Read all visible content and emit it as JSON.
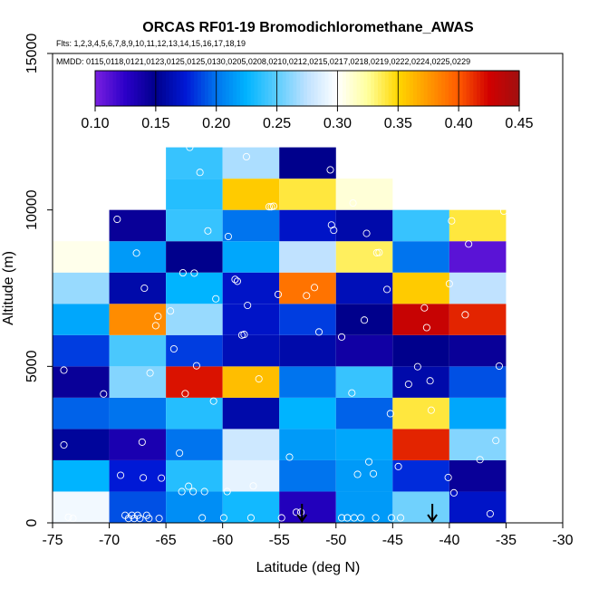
{
  "chart_data": {
    "type": "heatmap",
    "title": "ORCAS RF01-19 Bromodichloromethane_AWAS",
    "flights_label": "Flts: 1,2,3,4,5,6,7,8,9,10,11,12,13,14,15,16,17,18,19",
    "dates_label": "MMDD: 0115,0118,0121,0123,0125,0125,0130,0205,0208,0210,0212,0215,0217,0218,0219,0222,0224,0225,0229",
    "xlabel": "Latitude (deg N)",
    "ylabel": "Altitude (m)",
    "xlim": [
      -75,
      -30
    ],
    "ylim": [
      0,
      15000
    ],
    "x_ticks": [
      -75,
      -70,
      -65,
      -60,
      -55,
      -50,
      -45,
      -40,
      -35,
      -30
    ],
    "y_ticks": [
      0,
      5000,
      10000,
      15000
    ],
    "colorbar": {
      "min": 0.1,
      "max": 0.45,
      "ticks": [
        0.1,
        0.15,
        0.2,
        0.25,
        0.3,
        0.35,
        0.4,
        0.45
      ],
      "tick_labels": [
        "0.10",
        "0.15",
        "0.20",
        "0.25",
        "0.30",
        "0.35",
        "0.40",
        "0.45"
      ],
      "colors": [
        "#7a1fe0",
        "#2b00c8",
        "#00008c",
        "#0019d6",
        "#0074ee",
        "#00b4ff",
        "#5ccdfd",
        "#c0e2ff",
        "#ffffff",
        "#ffff9c",
        "#ffd700",
        "#ff9900",
        "#ff5a00",
        "#d10000",
        "#a01010"
      ]
    },
    "cell_width_deg": 5,
    "cell_height_m": 1000,
    "cells": [
      {
        "lat": -75,
        "alt": 0,
        "value": 0.295
      },
      {
        "lat": -75,
        "alt": 1000,
        "value": 0.225
      },
      {
        "lat": -75,
        "alt": 2000,
        "value": 0.155
      },
      {
        "lat": -75,
        "alt": 3000,
        "value": 0.195
      },
      {
        "lat": -75,
        "alt": 4000,
        "value": 0.145
      },
      {
        "lat": -75,
        "alt": 5000,
        "value": 0.185
      },
      {
        "lat": -75,
        "alt": 6000,
        "value": 0.22
      },
      {
        "lat": -75,
        "alt": 7000,
        "value": 0.265
      },
      {
        "lat": -75,
        "alt": 8000,
        "value": 0.305
      },
      {
        "lat": -70,
        "alt": 0,
        "value": 0.19
      },
      {
        "lat": -70,
        "alt": 1000,
        "value": 0.175
      },
      {
        "lat": -70,
        "alt": 2000,
        "value": 0.135
      },
      {
        "lat": -70,
        "alt": 3000,
        "value": 0.2
      },
      {
        "lat": -70,
        "alt": 4000,
        "value": 0.26
      },
      {
        "lat": -70,
        "alt": 5000,
        "value": 0.245
      },
      {
        "lat": -70,
        "alt": 6000,
        "value": 0.38
      },
      {
        "lat": -70,
        "alt": 7000,
        "value": 0.16
      },
      {
        "lat": -70,
        "alt": 8000,
        "value": 0.215
      },
      {
        "lat": -70,
        "alt": 9000,
        "value": 0.145
      },
      {
        "lat": -65,
        "alt": 0,
        "value": 0.21
      },
      {
        "lat": -65,
        "alt": 1000,
        "value": 0.235
      },
      {
        "lat": -65,
        "alt": 2000,
        "value": 0.2
      },
      {
        "lat": -65,
        "alt": 3000,
        "value": 0.235
      },
      {
        "lat": -65,
        "alt": 4000,
        "value": 0.42
      },
      {
        "lat": -65,
        "alt": 5000,
        "value": 0.185
      },
      {
        "lat": -65,
        "alt": 6000,
        "value": 0.265
      },
      {
        "lat": -65,
        "alt": 7000,
        "value": 0.225
      },
      {
        "lat": -65,
        "alt": 8000,
        "value": 0.15
      },
      {
        "lat": -65,
        "alt": 9000,
        "value": 0.24
      },
      {
        "lat": -65,
        "alt": 10000,
        "value": 0.235
      },
      {
        "lat": -65,
        "alt": 11000,
        "value": 0.24
      },
      {
        "lat": -60,
        "alt": 0,
        "value": 0.23
      },
      {
        "lat": -60,
        "alt": 1000,
        "value": 0.29
      },
      {
        "lat": -60,
        "alt": 2000,
        "value": 0.28
      },
      {
        "lat": -60,
        "alt": 3000,
        "value": 0.16
      },
      {
        "lat": -60,
        "alt": 4000,
        "value": 0.36
      },
      {
        "lat": -60,
        "alt": 5000,
        "value": 0.165
      },
      {
        "lat": -60,
        "alt": 6000,
        "value": 0.17
      },
      {
        "lat": -60,
        "alt": 7000,
        "value": 0.17
      },
      {
        "lat": -60,
        "alt": 8000,
        "value": 0.22
      },
      {
        "lat": -60,
        "alt": 9000,
        "value": 0.2
      },
      {
        "lat": -60,
        "alt": 10000,
        "value": 0.355
      },
      {
        "lat": -60,
        "alt": 11000,
        "value": 0.27
      },
      {
        "lat": -55,
        "alt": 0,
        "value": 0.13
      },
      {
        "lat": -55,
        "alt": 1000,
        "value": 0.2
      },
      {
        "lat": -55,
        "alt": 2000,
        "value": 0.215
      },
      {
        "lat": -55,
        "alt": 3000,
        "value": 0.225
      },
      {
        "lat": -55,
        "alt": 4000,
        "value": 0.2
      },
      {
        "lat": -55,
        "alt": 5000,
        "value": 0.16
      },
      {
        "lat": -55,
        "alt": 6000,
        "value": 0.185
      },
      {
        "lat": -55,
        "alt": 7000,
        "value": 0.39
      },
      {
        "lat": -55,
        "alt": 8000,
        "value": 0.275
      },
      {
        "lat": -55,
        "alt": 9000,
        "value": 0.17
      },
      {
        "lat": -55,
        "alt": 10000,
        "value": 0.34
      },
      {
        "lat": -55,
        "alt": 11000,
        "value": 0.15
      },
      {
        "lat": -50,
        "alt": 0,
        "value": 0.215
      },
      {
        "lat": -50,
        "alt": 1000,
        "value": 0.215
      },
      {
        "lat": -50,
        "alt": 2000,
        "value": 0.22
      },
      {
        "lat": -50,
        "alt": 3000,
        "value": 0.195
      },
      {
        "lat": -50,
        "alt": 4000,
        "value": 0.24
      },
      {
        "lat": -50,
        "alt": 5000,
        "value": 0.14
      },
      {
        "lat": -50,
        "alt": 6000,
        "value": 0.15
      },
      {
        "lat": -50,
        "alt": 7000,
        "value": 0.165
      },
      {
        "lat": -50,
        "alt": 8000,
        "value": 0.335
      },
      {
        "lat": -50,
        "alt": 9000,
        "value": 0.16
      },
      {
        "lat": -50,
        "alt": 10000,
        "value": 0.31
      },
      {
        "lat": -45,
        "alt": 0,
        "value": 0.255
      },
      {
        "lat": -45,
        "alt": 1000,
        "value": 0.18
      },
      {
        "lat": -45,
        "alt": 2000,
        "value": 0.415
      },
      {
        "lat": -45,
        "alt": 3000,
        "value": 0.34
      },
      {
        "lat": -45,
        "alt": 4000,
        "value": 0.16
      },
      {
        "lat": -45,
        "alt": 5000,
        "value": 0.15
      },
      {
        "lat": -45,
        "alt": 6000,
        "value": 0.43
      },
      {
        "lat": -45,
        "alt": 7000,
        "value": 0.355
      },
      {
        "lat": -45,
        "alt": 8000,
        "value": 0.2
      },
      {
        "lat": -45,
        "alt": 9000,
        "value": 0.24
      },
      {
        "lat": -40,
        "alt": 0,
        "value": 0.17
      },
      {
        "lat": -40,
        "alt": 1000,
        "value": 0.145
      },
      {
        "lat": -40,
        "alt": 2000,
        "value": 0.26
      },
      {
        "lat": -40,
        "alt": 3000,
        "value": 0.22
      },
      {
        "lat": -40,
        "alt": 4000,
        "value": 0.19
      },
      {
        "lat": -40,
        "alt": 5000,
        "value": 0.145
      },
      {
        "lat": -40,
        "alt": 6000,
        "value": 0.415
      },
      {
        "lat": -40,
        "alt": 7000,
        "value": 0.275
      },
      {
        "lat": -40,
        "alt": 8000,
        "value": 0.11
      },
      {
        "lat": -40,
        "alt": 9000,
        "value": 0.34
      }
    ],
    "sample_points": [
      {
        "lat": -74,
        "alt": 4880
      },
      {
        "lat": -74,
        "alt": 2490
      },
      {
        "lat": -73.6,
        "alt": 180
      },
      {
        "lat": -73.2,
        "alt": 140
      },
      {
        "lat": -70.5,
        "alt": 4120
      },
      {
        "lat": -69.3,
        "alt": 9700
      },
      {
        "lat": -69,
        "alt": 1520
      },
      {
        "lat": -68.6,
        "alt": 240
      },
      {
        "lat": -68.3,
        "alt": 140
      },
      {
        "lat": -68,
        "alt": 240
      },
      {
        "lat": -67.8,
        "alt": 140
      },
      {
        "lat": -67.6,
        "alt": 8620
      },
      {
        "lat": -67.5,
        "alt": 240
      },
      {
        "lat": -67.3,
        "alt": 140
      },
      {
        "lat": -67.1,
        "alt": 2580
      },
      {
        "lat": -67,
        "alt": 1440
      },
      {
        "lat": -66.9,
        "alt": 7500
      },
      {
        "lat": -66.7,
        "alt": 240
      },
      {
        "lat": -66.5,
        "alt": 140
      },
      {
        "lat": -66.4,
        "alt": 4790
      },
      {
        "lat": -65.6,
        "alt": 140
      },
      {
        "lat": -65.9,
        "alt": 6300
      },
      {
        "lat": -65.7,
        "alt": 6600
      },
      {
        "lat": -65.4,
        "alt": 1430
      },
      {
        "lat": -64.6,
        "alt": 6770
      },
      {
        "lat": -64.3,
        "alt": 5560
      },
      {
        "lat": -63.8,
        "alt": 2230
      },
      {
        "lat": -63.6,
        "alt": 1000
      },
      {
        "lat": -63.5,
        "alt": 7990
      },
      {
        "lat": -63.3,
        "alt": 4130
      },
      {
        "lat": -63,
        "alt": 1170
      },
      {
        "lat": -62.9,
        "alt": 12000
      },
      {
        "lat": -62.6,
        "alt": 1000
      },
      {
        "lat": -62.5,
        "alt": 7980
      },
      {
        "lat": -62.3,
        "alt": 5020
      },
      {
        "lat": -62,
        "alt": 11200
      },
      {
        "lat": -61.8,
        "alt": 160
      },
      {
        "lat": -61.6,
        "alt": 1000
      },
      {
        "lat": -61.3,
        "alt": 9330
      },
      {
        "lat": -60.8,
        "alt": 3890
      },
      {
        "lat": -60.6,
        "alt": 7160
      },
      {
        "lat": -59.9,
        "alt": 160
      },
      {
        "lat": -59.6,
        "alt": 1000
      },
      {
        "lat": -59.5,
        "alt": 9150
      },
      {
        "lat": -58.9,
        "alt": 7780
      },
      {
        "lat": -58.7,
        "alt": 7720
      },
      {
        "lat": -58.3,
        "alt": 6000
      },
      {
        "lat": -58.1,
        "alt": 6020
      },
      {
        "lat": -57.9,
        "alt": 11700
      },
      {
        "lat": -57.8,
        "alt": 6950
      },
      {
        "lat": -57.5,
        "alt": 160
      },
      {
        "lat": -57.3,
        "alt": 1180
      },
      {
        "lat": -56.8,
        "alt": 4600
      },
      {
        "lat": -55.9,
        "alt": 10100
      },
      {
        "lat": -55.7,
        "alt": 10100
      },
      {
        "lat": -55.5,
        "alt": 10120
      },
      {
        "lat": -55.1,
        "alt": 7300
      },
      {
        "lat": -54.8,
        "alt": 160
      },
      {
        "lat": -54.1,
        "alt": 2100
      },
      {
        "lat": -53.5,
        "alt": 340
      },
      {
        "lat": -53.1,
        "alt": 340
      },
      {
        "lat": -52.6,
        "alt": 7260
      },
      {
        "lat": -51.9,
        "alt": 7520
      },
      {
        "lat": -51.5,
        "alt": 6100
      },
      {
        "lat": -50.5,
        "alt": 11280
      },
      {
        "lat": -50.4,
        "alt": 9520
      },
      {
        "lat": -50.2,
        "alt": 9350
      },
      {
        "lat": -49.5,
        "alt": 5940
      },
      {
        "lat": -49.5,
        "alt": 160
      },
      {
        "lat": -49,
        "alt": 160
      },
      {
        "lat": -48.6,
        "alt": 4150
      },
      {
        "lat": -48.5,
        "alt": 10220
      },
      {
        "lat": -48.4,
        "alt": 160
      },
      {
        "lat": -48.1,
        "alt": 1550
      },
      {
        "lat": -47.8,
        "alt": 160
      },
      {
        "lat": -47.5,
        "alt": 6480
      },
      {
        "lat": -47.3,
        "alt": 9250
      },
      {
        "lat": -47.1,
        "alt": 1950
      },
      {
        "lat": -46.7,
        "alt": 1570
      },
      {
        "lat": -46.5,
        "alt": 160
      },
      {
        "lat": -46.4,
        "alt": 8630
      },
      {
        "lat": -46.2,
        "alt": 8640
      },
      {
        "lat": -45.5,
        "alt": 7460
      },
      {
        "lat": -45.2,
        "alt": 3490
      },
      {
        "lat": -45.1,
        "alt": 160
      },
      {
        "lat": -44.5,
        "alt": 1800
      },
      {
        "lat": -44.3,
        "alt": 160
      },
      {
        "lat": -43.6,
        "alt": 4430
      },
      {
        "lat": -42.8,
        "alt": 4990
      },
      {
        "lat": -42.2,
        "alt": 6870
      },
      {
        "lat": -42,
        "alt": 6240
      },
      {
        "lat": -41.7,
        "alt": 4540
      },
      {
        "lat": -41.6,
        "alt": 3600
      },
      {
        "lat": -40.1,
        "alt": 1450
      },
      {
        "lat": -40,
        "alt": 7640
      },
      {
        "lat": -39.8,
        "alt": 9650
      },
      {
        "lat": -39.6,
        "alt": 960
      },
      {
        "lat": -38.6,
        "alt": 6650
      },
      {
        "lat": -38.3,
        "alt": 8910
      },
      {
        "lat": -37.3,
        "alt": 2020
      },
      {
        "lat": -36.4,
        "alt": 290
      },
      {
        "lat": -35.9,
        "alt": 2630
      },
      {
        "lat": -35.6,
        "alt": 5010
      },
      {
        "lat": -35.2,
        "alt": 9960
      }
    ],
    "arrow_markers_lat": [
      -53,
      -41.5
    ]
  }
}
